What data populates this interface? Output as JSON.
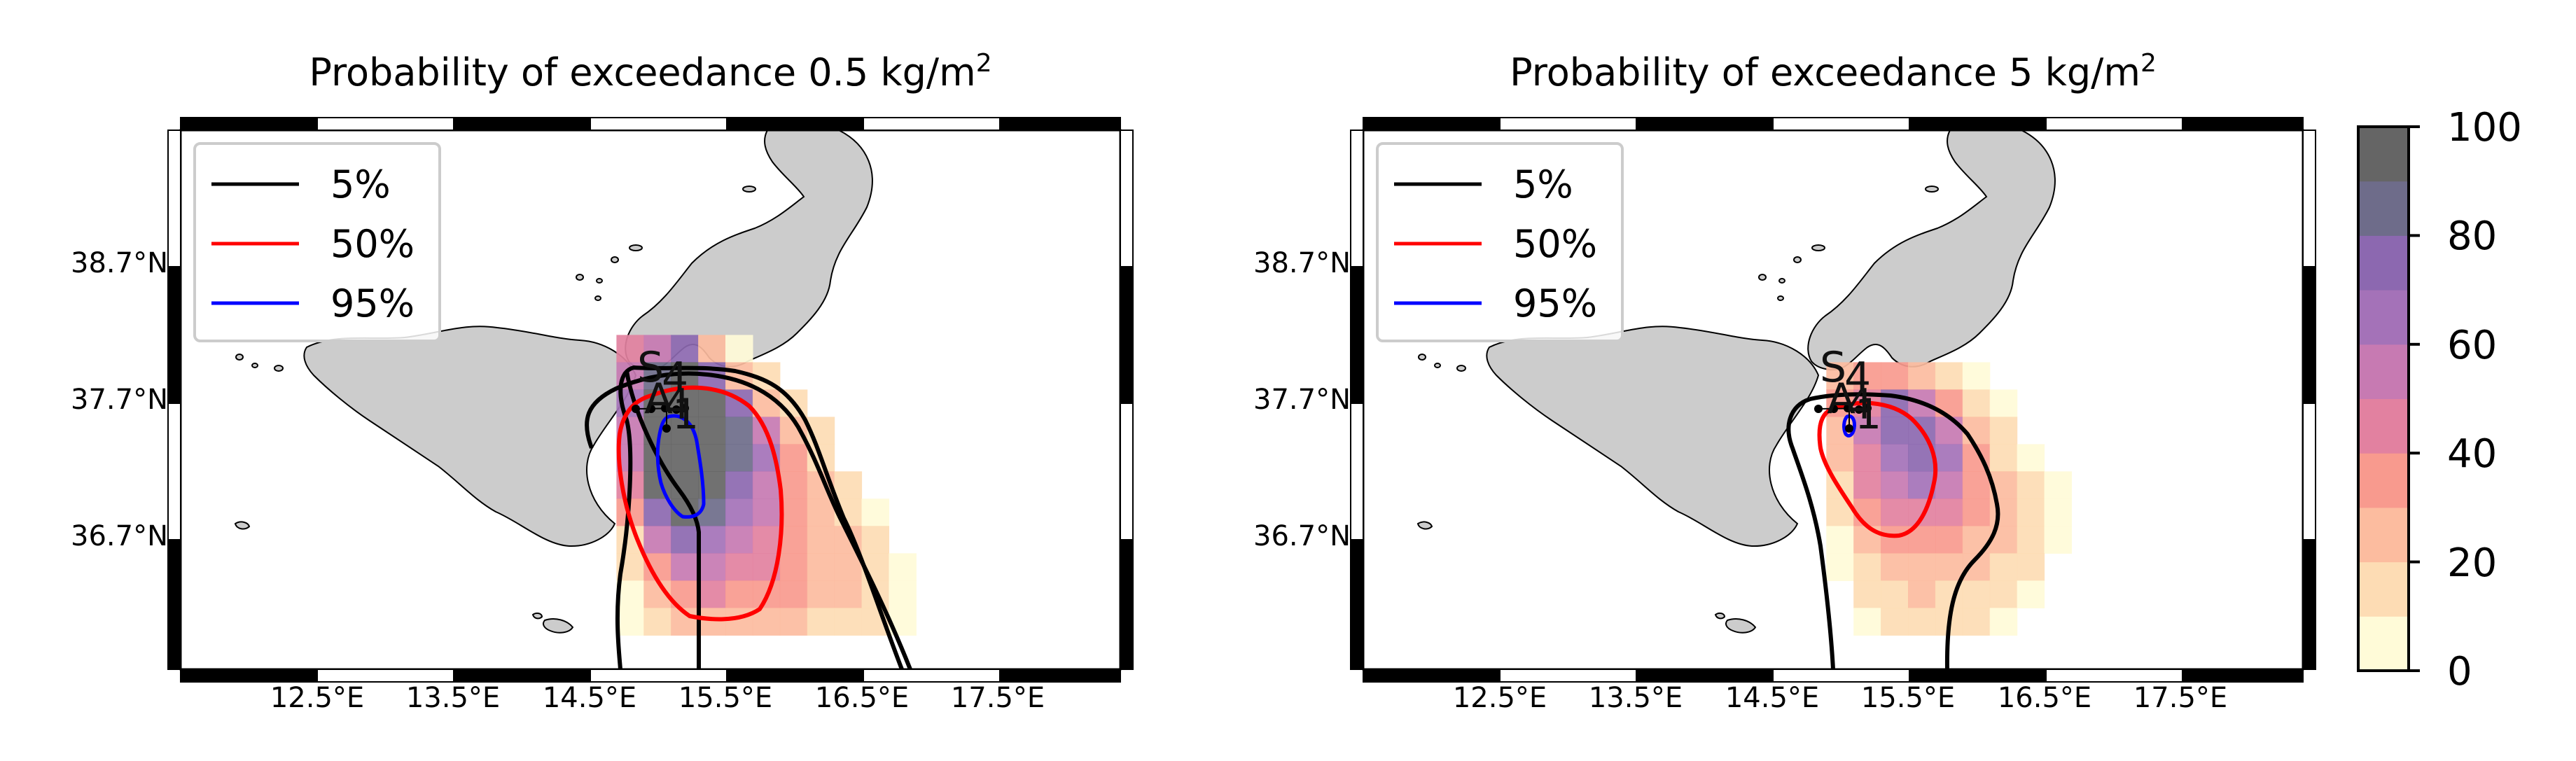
{
  "chart_data": [
    {
      "type": "heatmap",
      "title_prefix": "Probability of exceedance 0.5 kg/m",
      "title_sup": "2",
      "threshold_kg_m2": 0.5,
      "x_ticks": [
        "12.5°E",
        "13.5°E",
        "14.5°E",
        "15.5°E",
        "16.5°E",
        "17.5°E"
      ],
      "y_ticks": [
        "38.7°N",
        "37.7°N",
        "36.7°N"
      ],
      "legend": [
        {
          "label": "5%",
          "color": "#000000"
        },
        {
          "label": "50%",
          "color": "#ff0000"
        },
        {
          "label": "95%",
          "color": "#0000ff"
        }
      ],
      "legend_position": "top-left",
      "site_labels": [
        "S",
        "4",
        "A",
        "4",
        "1"
      ],
      "grid_lon0": 14.7,
      "grid_lat0": 37.8,
      "grid_step": 0.2,
      "grid": [
        [
          45,
          55,
          70,
          25,
          5,
          0,
          0,
          0,
          0,
          0,
          0
        ],
        [
          55,
          85,
          95,
          75,
          25,
          10,
          0,
          0,
          0,
          0,
          0
        ],
        [
          60,
          95,
          95,
          90,
          70,
          25,
          10,
          0,
          0,
          0,
          0
        ],
        [
          50,
          95,
          95,
          95,
          85,
          55,
          25,
          10,
          0,
          0,
          0
        ],
        [
          50,
          95,
          95,
          95,
          85,
          60,
          30,
          15,
          0,
          0,
          0
        ],
        [
          40,
          90,
          95,
          90,
          75,
          55,
          35,
          20,
          10,
          0,
          0
        ],
        [
          30,
          75,
          90,
          80,
          65,
          50,
          35,
          25,
          15,
          5,
          0
        ],
        [
          15,
          50,
          70,
          65,
          55,
          45,
          35,
          25,
          20,
          10,
          0
        ],
        [
          10,
          35,
          50,
          55,
          45,
          40,
          35,
          25,
          20,
          15,
          5
        ],
        [
          5,
          25,
          35,
          40,
          35,
          35,
          30,
          25,
          20,
          15,
          5
        ],
        [
          5,
          15,
          20,
          25,
          25,
          25,
          20,
          15,
          15,
          10,
          5
        ]
      ]
    },
    {
      "type": "heatmap",
      "title_prefix": "Probability of exceedance 5 kg/m",
      "title_sup": "2",
      "threshold_kg_m2": 5,
      "x_ticks": [
        "12.5°E",
        "13.5°E",
        "14.5°E",
        "15.5°E",
        "16.5°E",
        "17.5°E"
      ],
      "y_ticks": [
        "38.7°N",
        "37.7°N",
        "36.7°N"
      ],
      "legend": [
        {
          "label": "5%",
          "color": "#000000"
        },
        {
          "label": "50%",
          "color": "#ff0000"
        },
        {
          "label": "95%",
          "color": "#0000ff"
        }
      ],
      "legend_position": "top-left",
      "site_labels": [
        "S",
        "4",
        "A",
        "4",
        "1"
      ],
      "grid_lon0": 14.9,
      "grid_lat0": 37.6,
      "grid_step": 0.2,
      "grid": [
        [
          25,
          30,
          35,
          20,
          10,
          5,
          0,
          0,
          0,
          0
        ],
        [
          30,
          45,
          70,
          55,
          30,
          10,
          5,
          0,
          0,
          0
        ],
        [
          25,
          50,
          75,
          75,
          55,
          25,
          10,
          0,
          0,
          0
        ],
        [
          20,
          45,
          65,
          70,
          60,
          35,
          15,
          5,
          0,
          0
        ],
        [
          15,
          40,
          55,
          60,
          50,
          35,
          20,
          10,
          5,
          0
        ],
        [
          10,
          30,
          45,
          45,
          40,
          30,
          20,
          10,
          5,
          0
        ],
        [
          5,
          20,
          30,
          35,
          30,
          25,
          20,
          15,
          5,
          0
        ],
        [
          5,
          15,
          25,
          25,
          25,
          20,
          15,
          10,
          0,
          0
        ],
        [
          0,
          10,
          15,
          20,
          15,
          15,
          10,
          5,
          0,
          0
        ],
        [
          0,
          5,
          10,
          10,
          10,
          10,
          5,
          0,
          0,
          0
        ]
      ]
    }
  ],
  "colorbar": {
    "ticks": [
      "0",
      "20",
      "40",
      "60",
      "80",
      "100"
    ],
    "vmin": 0,
    "vmax": 100,
    "colors": [
      "#fffbd8",
      "#fddcb4",
      "#fcbc9f",
      "#f89a8e",
      "#e281a0",
      "#c77ab2",
      "#a472b8",
      "#8c68b0",
      "#6e6c8a",
      "#656565"
    ]
  }
}
